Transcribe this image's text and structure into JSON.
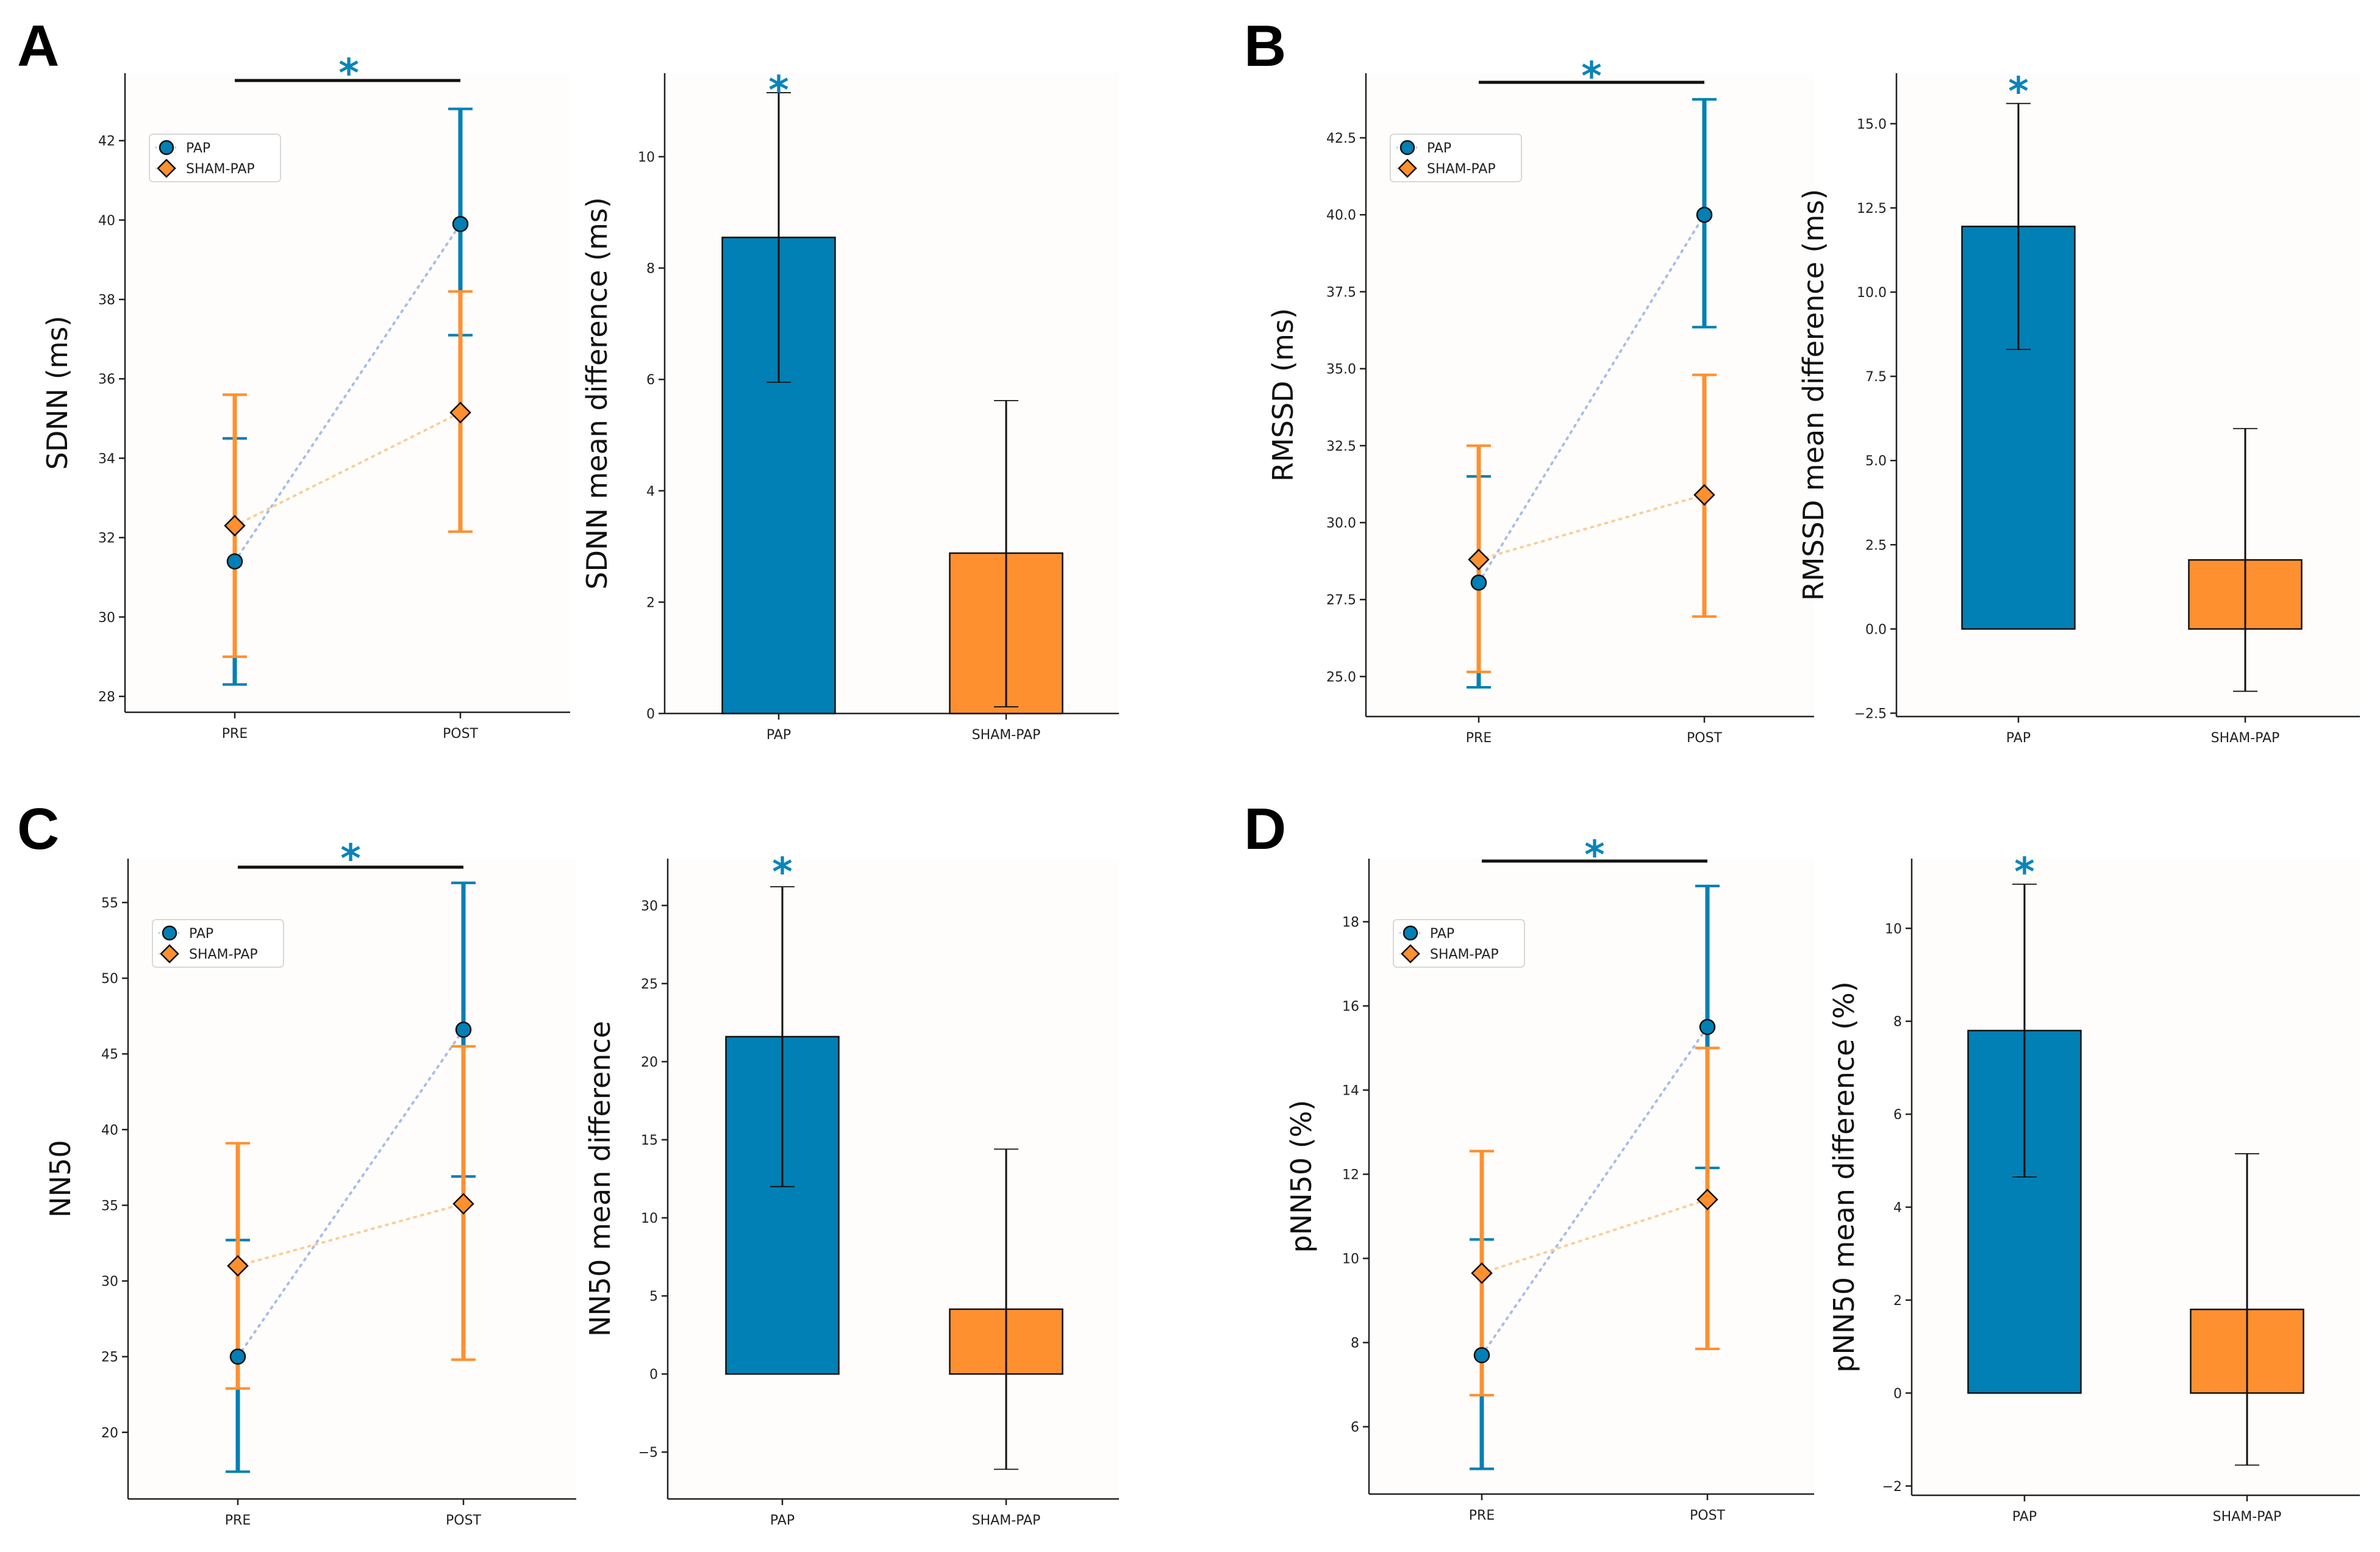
{
  "colors": {
    "pap": "#0080b4",
    "sham": "#ff9030",
    "pap_line": "#a8bde8",
    "sham_line": "#f8cf98",
    "significance": "#0b84b8",
    "edge": "#111111"
  },
  "significance_symbol": "*",
  "panels": [
    {
      "letter": "A",
      "line": {
        "ylabel": "SDNN (ms)",
        "categories": [
          "PRE",
          "POST"
        ],
        "ylim": [
          27.6,
          43.7
        ],
        "yticks": [
          28,
          30,
          32,
          34,
          36,
          38,
          40,
          42
        ],
        "tick_decimals": 0,
        "legend": [
          "PAP",
          "SHAM-PAP"
        ],
        "series": [
          {
            "name": "PAP",
            "values": [
              31.4,
              39.9
            ],
            "lower": [
              28.3,
              37.1
            ],
            "upper": [
              34.5,
              42.8
            ]
          },
          {
            "name": "SHAM-PAP",
            "values": [
              32.3,
              35.15
            ],
            "lower": [
              29.0,
              32.15
            ],
            "upper": [
              35.6,
              38.2
            ]
          }
        ]
      },
      "bar": {
        "ylabel": "SDNN mean difference (ms)",
        "categories": [
          "PAP",
          "SHAM-PAP"
        ],
        "ylim": [
          0,
          11.5
        ],
        "yticks": [
          0,
          2,
          4,
          6,
          8,
          10
        ],
        "tick_decimals": 0,
        "values": [
          8.55,
          2.88
        ],
        "lower": [
          5.95,
          0.12
        ],
        "upper": [
          11.15,
          5.62
        ]
      }
    },
    {
      "letter": "B",
      "line": {
        "ylabel": "RMSSD (ms)",
        "categories": [
          "PRE",
          "POST"
        ],
        "ylim": [
          23.7,
          44.6
        ],
        "yticks": [
          25.0,
          27.5,
          30.0,
          32.5,
          35.0,
          37.5,
          40.0,
          42.5
        ],
        "tick_decimals": 1,
        "legend": [
          "PAP",
          "SHAM-PAP"
        ],
        "series": [
          {
            "name": "PAP",
            "values": [
              28.05,
              40.0
            ],
            "lower": [
              24.65,
              36.35
            ],
            "upper": [
              31.5,
              43.75
            ]
          },
          {
            "name": "SHAM-PAP",
            "values": [
              28.8,
              30.9
            ],
            "lower": [
              25.15,
              26.95
            ],
            "upper": [
              32.5,
              34.8
            ]
          }
        ]
      },
      "bar": {
        "ylabel": "RMSSD mean difference (ms)",
        "categories": [
          "PAP",
          "SHAM-PAP"
        ],
        "ylim": [
          -2.6,
          16.5
        ],
        "yticks": [
          -2.5,
          0.0,
          2.5,
          5.0,
          7.5,
          10.0,
          12.5,
          15.0
        ],
        "tick_decimals": 1,
        "values": [
          11.95,
          2.05
        ],
        "lower": [
          8.3,
          -1.85
        ],
        "upper": [
          15.6,
          5.95
        ]
      }
    },
    {
      "letter": "C",
      "line": {
        "ylabel": "NN50",
        "categories": [
          "PRE",
          "POST"
        ],
        "ylim": [
          15.6,
          57.9
        ],
        "yticks": [
          20,
          25,
          30,
          35,
          40,
          45,
          50,
          55
        ],
        "tick_decimals": 0,
        "legend": [
          "PAP",
          "SHAM-PAP"
        ],
        "series": [
          {
            "name": "PAP",
            "values": [
              25.0,
              46.6
            ],
            "lower": [
              17.4,
              36.9
            ],
            "upper": [
              32.7,
              56.3
            ]
          },
          {
            "name": "SHAM-PAP",
            "values": [
              31.0,
              35.1
            ],
            "lower": [
              22.9,
              24.8
            ],
            "upper": [
              39.1,
              45.5
            ]
          }
        ]
      },
      "bar": {
        "ylabel": "NN50 mean difference",
        "categories": [
          "PAP",
          "SHAM-PAP"
        ],
        "ylim": [
          -8.0,
          33.0
        ],
        "yticks": [
          -5,
          0,
          5,
          10,
          15,
          20,
          25,
          30
        ],
        "tick_decimals": 0,
        "values": [
          21.6,
          4.15
        ],
        "lower": [
          12.0,
          -6.1
        ],
        "upper": [
          31.2,
          14.4
        ]
      }
    },
    {
      "letter": "D",
      "line": {
        "ylabel": "pNN50 (%)",
        "categories": [
          "PRE",
          "POST"
        ],
        "ylim": [
          4.4,
          19.5
        ],
        "yticks": [
          6,
          8,
          10,
          12,
          14,
          16,
          18
        ],
        "tick_decimals": 0,
        "legend": [
          "PAP",
          "SHAM-PAP"
        ],
        "series": [
          {
            "name": "PAP",
            "values": [
              7.7,
              15.5
            ],
            "lower": [
              5.0,
              12.15
            ],
            "upper": [
              10.45,
              18.85
            ]
          },
          {
            "name": "SHAM-PAP",
            "values": [
              9.65,
              11.4
            ],
            "lower": [
              6.75,
              7.85
            ],
            "upper": [
              12.55,
              15.0
            ]
          }
        ]
      },
      "bar": {
        "ylabel": "pNN50 mean difference (%)",
        "categories": [
          "PAP",
          "SHAM-PAP"
        ],
        "ylim": [
          -2.2,
          11.5
        ],
        "yticks": [
          -2,
          0,
          2,
          4,
          6,
          8,
          10
        ],
        "tick_decimals": 0,
        "values": [
          7.8,
          1.8
        ],
        "lower": [
          4.65,
          -1.55
        ],
        "upper": [
          10.95,
          5.15
        ]
      }
    }
  ]
}
